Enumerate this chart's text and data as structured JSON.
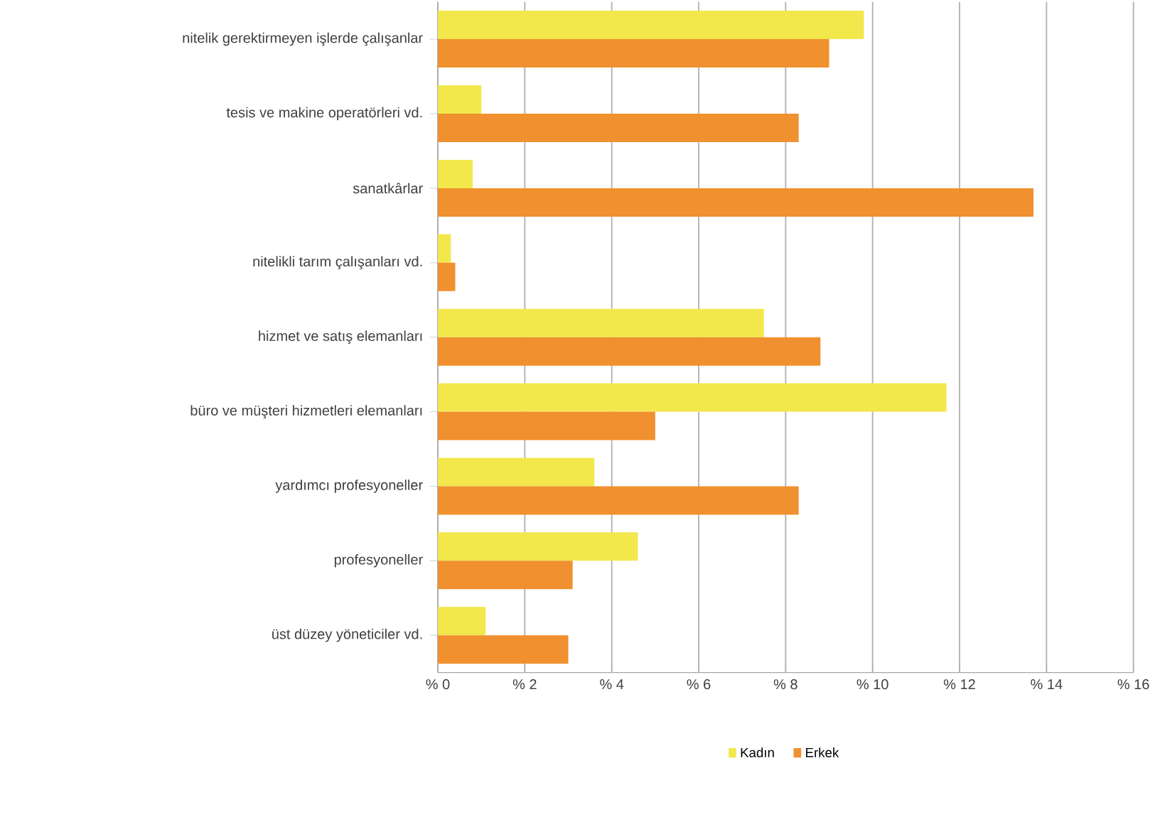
{
  "chart_data": {
    "type": "bar",
    "orientation": "horizontal",
    "categories": [
      "nitelik gerektirmeyen işlerde çalışanlar",
      "tesis ve makine operatörleri vd.",
      "sanatkârlar",
      "nitelikli tarım çalışanları vd.",
      "hizmet ve satış elemanları",
      "büro ve müşteri hizmetleri elemanları",
      "yardımcı profesyoneller",
      "profesyoneller",
      "üst düzey yöneticiler vd."
    ],
    "series": [
      {
        "name": "Kadın",
        "color": "#f2e84b",
        "values": [
          9.8,
          1.0,
          0.8,
          0.3,
          7.5,
          11.7,
          3.6,
          4.6,
          1.1
        ]
      },
      {
        "name": "Erkek",
        "color": "#f0902e",
        "values": [
          9.0,
          8.3,
          13.7,
          0.4,
          8.8,
          5.0,
          8.3,
          3.1,
          3.0
        ]
      }
    ],
    "xlim": [
      0,
      16
    ],
    "xticks": [
      {
        "value": 0,
        "label": "% 0"
      },
      {
        "value": 2,
        "label": "% 2"
      },
      {
        "value": 4,
        "label": "% 4"
      },
      {
        "value": 6,
        "label": "% 6"
      },
      {
        "value": 8,
        "label": "% 8"
      },
      {
        "value": 10,
        "label": "% 10"
      },
      {
        "value": 12,
        "label": "% 12"
      },
      {
        "value": 14,
        "label": "% 14"
      },
      {
        "value": 16,
        "label": "% 16"
      }
    ],
    "grid": "x",
    "legend": "bottom"
  }
}
